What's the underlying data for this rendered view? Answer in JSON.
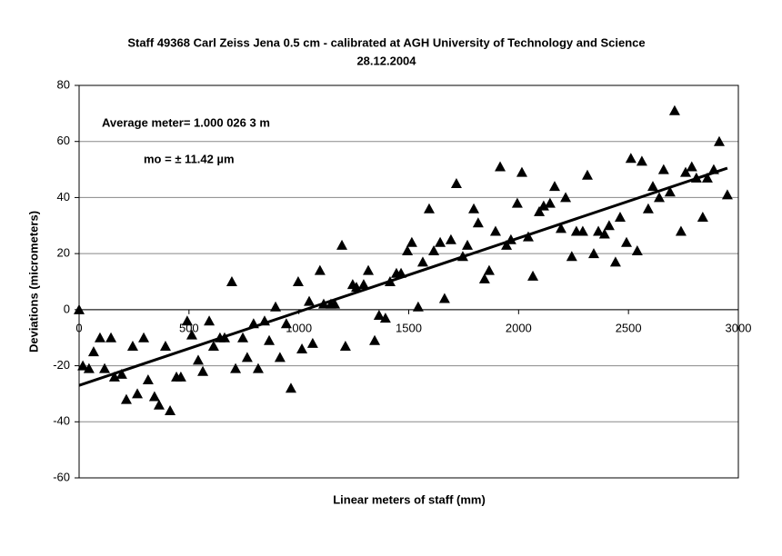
{
  "chart_data": {
    "type": "scatter",
    "title": "Staff 49368 Carl Zeiss Jena 0.5 cm - calibrated at AGH University of Technology and Science",
    "subtitle": "28.12.2004",
    "xlabel": "Linear meters of staff (mm)",
    "ylabel": "Deviations (micrometers)",
    "annotations": [
      "Average meter= 1.000 026 3 m",
      "mo = ± 11.42 µm"
    ],
    "xlim": [
      0,
      3000
    ],
    "xticks": [
      0,
      500,
      1000,
      1500,
      2000,
      2500,
      3000
    ],
    "ylim": [
      -60,
      80
    ],
    "yticks": [
      -60,
      -40,
      -20,
      0,
      20,
      40,
      60,
      80
    ],
    "grid": true,
    "color": "#000000",
    "x": [
      0,
      17,
      45,
      66,
      95,
      116,
      145,
      161,
      194,
      215,
      244,
      265,
      294,
      314,
      343,
      364,
      393,
      414,
      443,
      463,
      492,
      513,
      542,
      563,
      592,
      612,
      641,
      662,
      695,
      712,
      745,
      765,
      794,
      815,
      844,
      865,
      894,
      914,
      943,
      964,
      997,
      1014,
      1047,
      1063,
      1096,
      1113,
      1146,
      1163,
      1196,
      1212,
      1245,
      1262,
      1295,
      1316,
      1345,
      1365,
      1394,
      1415,
      1444,
      1465,
      1494,
      1514,
      1543,
      1564,
      1593,
      1614,
      1643,
      1663,
      1692,
      1717,
      1746,
      1767,
      1796,
      1816,
      1845,
      1866,
      1895,
      1916,
      1945,
      1965,
      1994,
      2015,
      2044,
      2065,
      2094,
      2114,
      2143,
      2164,
      2193,
      2214,
      2242,
      2263,
      2292,
      2313,
      2342,
      2363,
      2391,
      2412,
      2441,
      2462,
      2491,
      2511,
      2540,
      2561,
      2590,
      2611,
      2640,
      2660,
      2689,
      2710,
      2739,
      2760,
      2788,
      2809,
      2838,
      2859,
      2888,
      2913,
      2950
    ],
    "y": [
      0,
      -20,
      -21,
      -15,
      -10,
      -21,
      -10,
      -24,
      -23,
      -32,
      -13,
      -30,
      -10,
      -25,
      -31,
      -34,
      -13,
      -36,
      -24,
      -24,
      -4,
      -9,
      -18,
      -22,
      -4,
      -13,
      -10,
      -10,
      10,
      -21,
      -10,
      -17,
      -5,
      -21,
      -4,
      -11,
      1,
      -17,
      -5,
      -28,
      10,
      -14,
      3,
      -12,
      14,
      2,
      2,
      2,
      23,
      -13,
      9,
      8,
      9,
      14,
      -11,
      -2,
      -3,
      10,
      13,
      13,
      21,
      24,
      1,
      17,
      36,
      21,
      24,
      4,
      25,
      45,
      19,
      23,
      36,
      31,
      11,
      14,
      28,
      51,
      23,
      25,
      38,
      49,
      26,
      12,
      35,
      37,
      38,
      44,
      29,
      40,
      19,
      28,
      28,
      48,
      20,
      28,
      27,
      30,
      17,
      33,
      24,
      54,
      21,
      53,
      36,
      44,
      40,
      50,
      42,
      71,
      28,
      49,
      51,
      47,
      33,
      47,
      50,
      60,
      41
    ],
    "trend": {
      "x": [
        0,
        2950
      ],
      "y": [
        -27,
        50.5
      ]
    }
  }
}
